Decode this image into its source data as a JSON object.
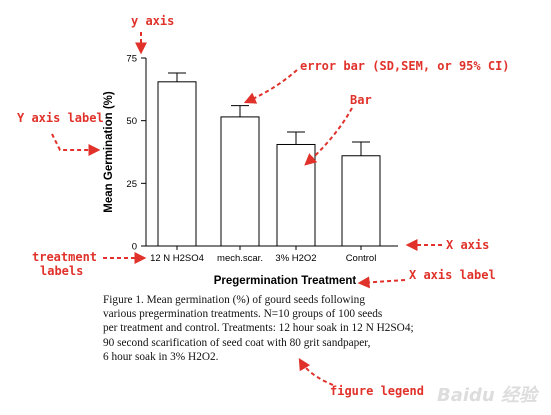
{
  "colors": {
    "annotation": "#e0322a",
    "axis": "#000000",
    "bar_fill": "#ffffff",
    "bar_stroke": "#000000"
  },
  "chart_data": {
    "type": "bar",
    "ylabel": "Mean Germination (%)",
    "xlabel": "Pregermination Treatment",
    "categories": [
      "12 N H2SO4",
      "mech.scar.",
      "3% H2O2",
      "Control"
    ],
    "values": [
      65.5,
      51.5,
      40.5,
      36
    ],
    "error": [
      3.5,
      4.5,
      5,
      5.5
    ],
    "ylim": [
      0,
      75
    ],
    "yticks": [
      "0",
      "25",
      "50",
      "75"
    ],
    "grid": false,
    "legend": "none"
  },
  "annotations": {
    "y_axis": "y axis",
    "error_bar": "error bar (SD,SEM, or 95% CI)",
    "bar": "Bar",
    "y_axis_label": "Y axis label",
    "treatment_labels_line1": "treatment",
    "treatment_labels_line2": "labels",
    "x_axis": "X axis",
    "x_axis_label": "X axis label",
    "figure_legend": "figure legend"
  },
  "caption": {
    "line1": "Figure 1. Mean germination (%) of gourd seeds following",
    "line2": "various pregermination treatments. N=10 groups of 100 seeds",
    "line3": "per treatment and control. Treatments: 12 hour soak in 12 N H2SO4;",
    "line4": "90 second scarification of seed coat with 80 grit sandpaper,",
    "line5": "6 hour soak in 3% H2O2."
  },
  "watermark": "Baidu 经验"
}
